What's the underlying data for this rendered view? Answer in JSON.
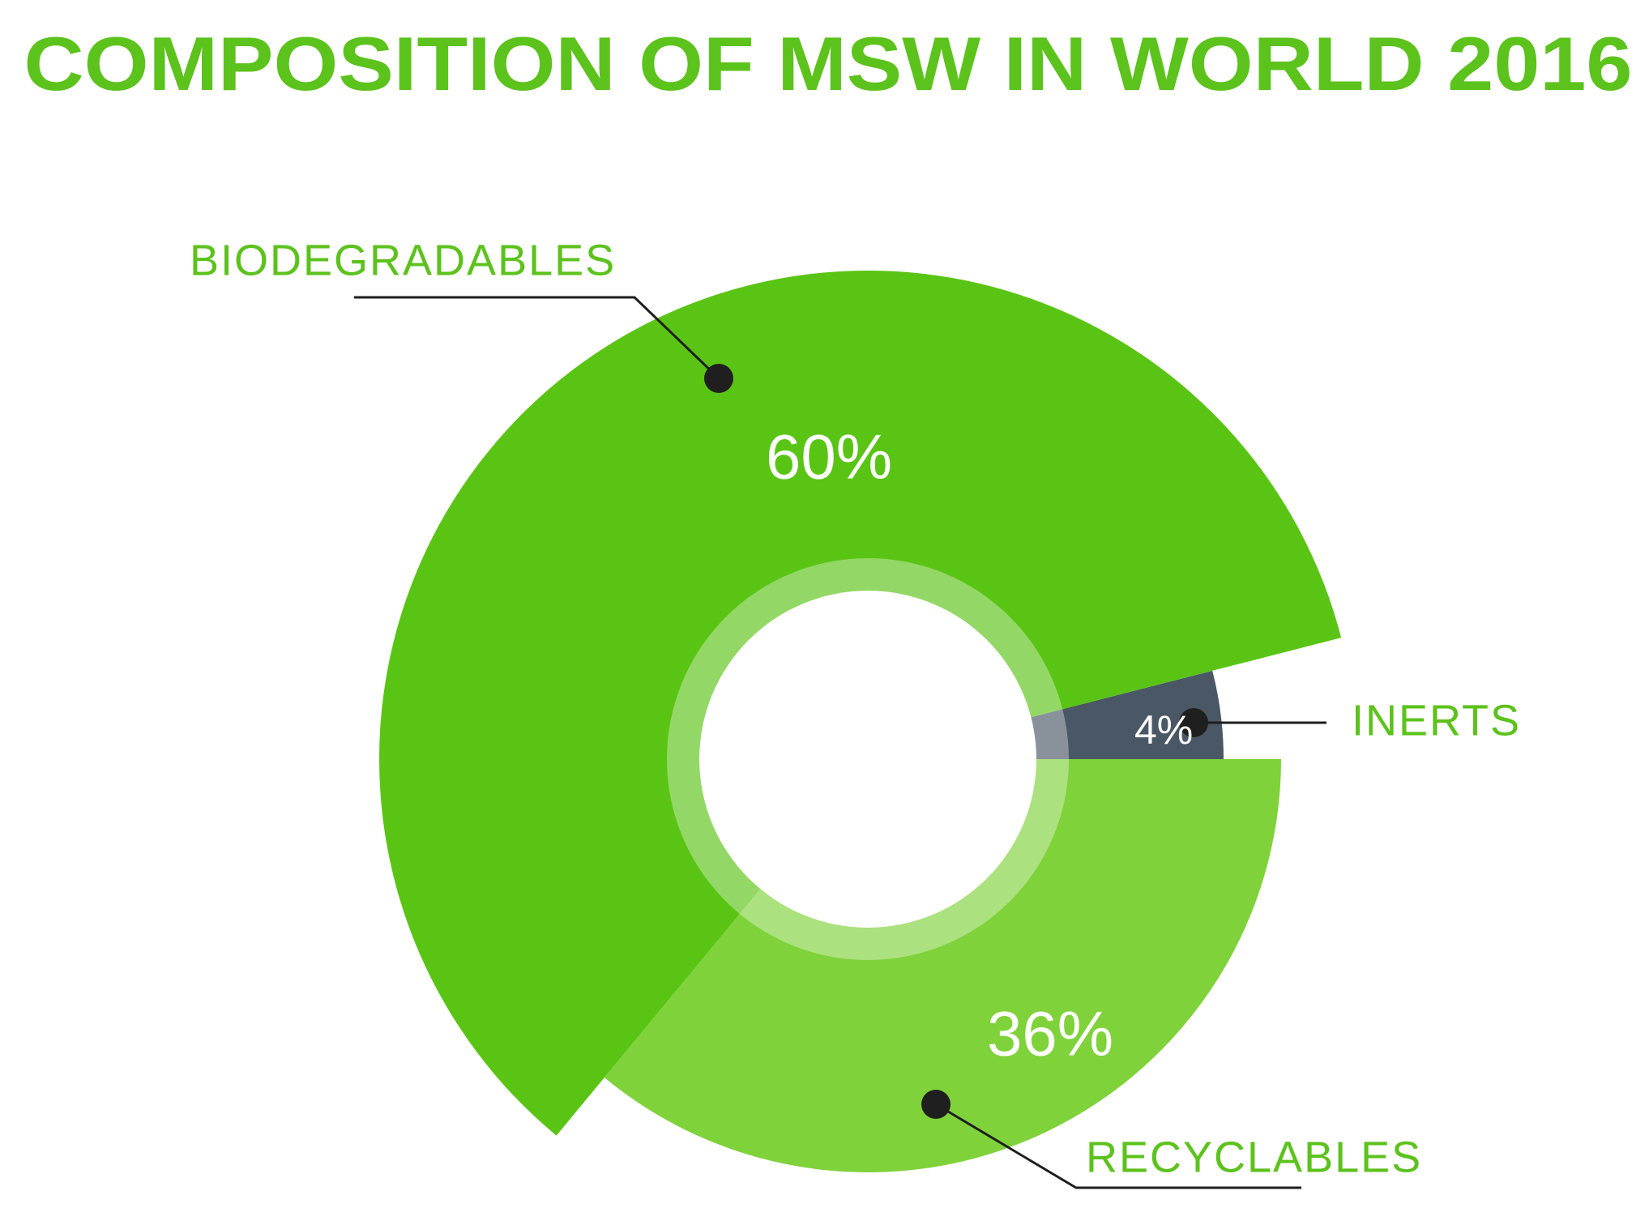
{
  "chart_data": {
    "type": "pie",
    "title": "COMPOSITION OF MSW IN WORLD 2016",
    "categories": [
      "INERTS",
      "BIODEGRADABLES",
      "RECYCLABLES"
    ],
    "values": [
      4,
      60,
      36
    ],
    "value_labels": [
      "4%",
      "60%",
      "36%"
    ],
    "colors": [
      "#4a5866",
      "#5ac414",
      "#7fd23a"
    ]
  }
}
